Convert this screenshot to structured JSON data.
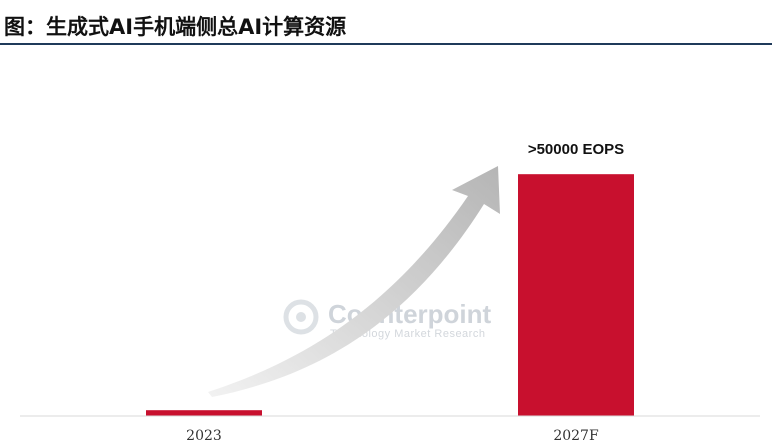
{
  "title": "图：生成式AI手机端侧总AI计算资源",
  "watermark": {
    "name": "Counterpoint",
    "tagline": "Technology Market Research"
  },
  "colors": {
    "bar": "#c8102e",
    "arrow": "#bfbfbf",
    "title_rule": "#1f3a5a"
  },
  "chart_data": {
    "type": "bar",
    "categories": [
      "2023",
      "2027F"
    ],
    "values": [
      1200,
      50000
    ],
    "data_labels": [
      "",
      ">50000 EOPS"
    ],
    "title": "图：生成式AI手机端侧总AI计算资源",
    "xlabel": "",
    "ylabel": "",
    "ylim": [
      0,
      55000
    ],
    "grid": false,
    "legend": "none",
    "annotation": "upward arrow from 2023 toward 2027F"
  }
}
